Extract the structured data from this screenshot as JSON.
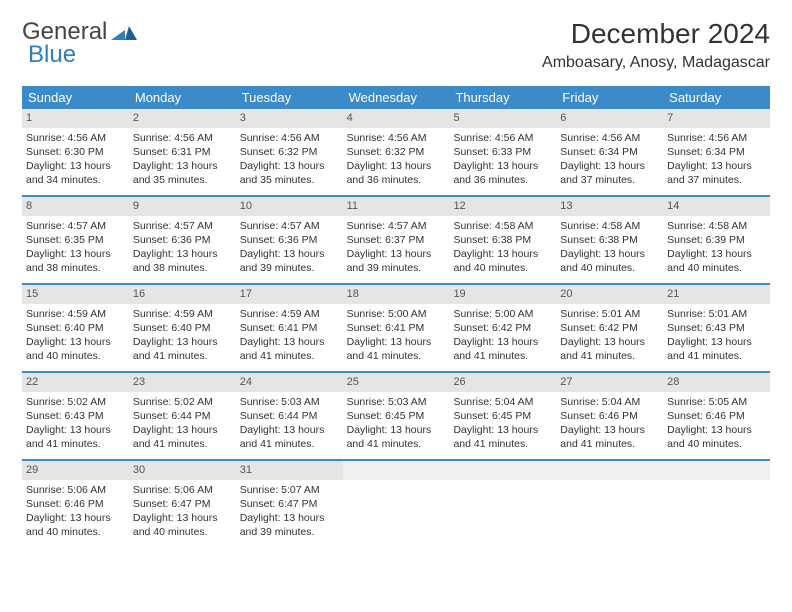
{
  "brand": {
    "part1": "General",
    "part2": "Blue"
  },
  "title": "December 2024",
  "location": "Amboasary, Anosy, Madagascar",
  "colors": {
    "header_blue": "#3b8bc9",
    "daynum_bg": "#e5e5e5",
    "text": "#333333",
    "logo_blue": "#2a7fbf"
  },
  "days_of_week": [
    "Sunday",
    "Monday",
    "Tuesday",
    "Wednesday",
    "Thursday",
    "Friday",
    "Saturday"
  ],
  "weeks": [
    [
      {
        "num": "1",
        "sunrise": "Sunrise: 4:56 AM",
        "sunset": "Sunset: 6:30 PM",
        "day1": "Daylight: 13 hours",
        "day2": "and 34 minutes."
      },
      {
        "num": "2",
        "sunrise": "Sunrise: 4:56 AM",
        "sunset": "Sunset: 6:31 PM",
        "day1": "Daylight: 13 hours",
        "day2": "and 35 minutes."
      },
      {
        "num": "3",
        "sunrise": "Sunrise: 4:56 AM",
        "sunset": "Sunset: 6:32 PM",
        "day1": "Daylight: 13 hours",
        "day2": "and 35 minutes."
      },
      {
        "num": "4",
        "sunrise": "Sunrise: 4:56 AM",
        "sunset": "Sunset: 6:32 PM",
        "day1": "Daylight: 13 hours",
        "day2": "and 36 minutes."
      },
      {
        "num": "5",
        "sunrise": "Sunrise: 4:56 AM",
        "sunset": "Sunset: 6:33 PM",
        "day1": "Daylight: 13 hours",
        "day2": "and 36 minutes."
      },
      {
        "num": "6",
        "sunrise": "Sunrise: 4:56 AM",
        "sunset": "Sunset: 6:34 PM",
        "day1": "Daylight: 13 hours",
        "day2": "and 37 minutes."
      },
      {
        "num": "7",
        "sunrise": "Sunrise: 4:56 AM",
        "sunset": "Sunset: 6:34 PM",
        "day1": "Daylight: 13 hours",
        "day2": "and 37 minutes."
      }
    ],
    [
      {
        "num": "8",
        "sunrise": "Sunrise: 4:57 AM",
        "sunset": "Sunset: 6:35 PM",
        "day1": "Daylight: 13 hours",
        "day2": "and 38 minutes."
      },
      {
        "num": "9",
        "sunrise": "Sunrise: 4:57 AM",
        "sunset": "Sunset: 6:36 PM",
        "day1": "Daylight: 13 hours",
        "day2": "and 38 minutes."
      },
      {
        "num": "10",
        "sunrise": "Sunrise: 4:57 AM",
        "sunset": "Sunset: 6:36 PM",
        "day1": "Daylight: 13 hours",
        "day2": "and 39 minutes."
      },
      {
        "num": "11",
        "sunrise": "Sunrise: 4:57 AM",
        "sunset": "Sunset: 6:37 PM",
        "day1": "Daylight: 13 hours",
        "day2": "and 39 minutes."
      },
      {
        "num": "12",
        "sunrise": "Sunrise: 4:58 AM",
        "sunset": "Sunset: 6:38 PM",
        "day1": "Daylight: 13 hours",
        "day2": "and 40 minutes."
      },
      {
        "num": "13",
        "sunrise": "Sunrise: 4:58 AM",
        "sunset": "Sunset: 6:38 PM",
        "day1": "Daylight: 13 hours",
        "day2": "and 40 minutes."
      },
      {
        "num": "14",
        "sunrise": "Sunrise: 4:58 AM",
        "sunset": "Sunset: 6:39 PM",
        "day1": "Daylight: 13 hours",
        "day2": "and 40 minutes."
      }
    ],
    [
      {
        "num": "15",
        "sunrise": "Sunrise: 4:59 AM",
        "sunset": "Sunset: 6:40 PM",
        "day1": "Daylight: 13 hours",
        "day2": "and 40 minutes."
      },
      {
        "num": "16",
        "sunrise": "Sunrise: 4:59 AM",
        "sunset": "Sunset: 6:40 PM",
        "day1": "Daylight: 13 hours",
        "day2": "and 41 minutes."
      },
      {
        "num": "17",
        "sunrise": "Sunrise: 4:59 AM",
        "sunset": "Sunset: 6:41 PM",
        "day1": "Daylight: 13 hours",
        "day2": "and 41 minutes."
      },
      {
        "num": "18",
        "sunrise": "Sunrise: 5:00 AM",
        "sunset": "Sunset: 6:41 PM",
        "day1": "Daylight: 13 hours",
        "day2": "and 41 minutes."
      },
      {
        "num": "19",
        "sunrise": "Sunrise: 5:00 AM",
        "sunset": "Sunset: 6:42 PM",
        "day1": "Daylight: 13 hours",
        "day2": "and 41 minutes."
      },
      {
        "num": "20",
        "sunrise": "Sunrise: 5:01 AM",
        "sunset": "Sunset: 6:42 PM",
        "day1": "Daylight: 13 hours",
        "day2": "and 41 minutes."
      },
      {
        "num": "21",
        "sunrise": "Sunrise: 5:01 AM",
        "sunset": "Sunset: 6:43 PM",
        "day1": "Daylight: 13 hours",
        "day2": "and 41 minutes."
      }
    ],
    [
      {
        "num": "22",
        "sunrise": "Sunrise: 5:02 AM",
        "sunset": "Sunset: 6:43 PM",
        "day1": "Daylight: 13 hours",
        "day2": "and 41 minutes."
      },
      {
        "num": "23",
        "sunrise": "Sunrise: 5:02 AM",
        "sunset": "Sunset: 6:44 PM",
        "day1": "Daylight: 13 hours",
        "day2": "and 41 minutes."
      },
      {
        "num": "24",
        "sunrise": "Sunrise: 5:03 AM",
        "sunset": "Sunset: 6:44 PM",
        "day1": "Daylight: 13 hours",
        "day2": "and 41 minutes."
      },
      {
        "num": "25",
        "sunrise": "Sunrise: 5:03 AM",
        "sunset": "Sunset: 6:45 PM",
        "day1": "Daylight: 13 hours",
        "day2": "and 41 minutes."
      },
      {
        "num": "26",
        "sunrise": "Sunrise: 5:04 AM",
        "sunset": "Sunset: 6:45 PM",
        "day1": "Daylight: 13 hours",
        "day2": "and 41 minutes."
      },
      {
        "num": "27",
        "sunrise": "Sunrise: 5:04 AM",
        "sunset": "Sunset: 6:46 PM",
        "day1": "Daylight: 13 hours",
        "day2": "and 41 minutes."
      },
      {
        "num": "28",
        "sunrise": "Sunrise: 5:05 AM",
        "sunset": "Sunset: 6:46 PM",
        "day1": "Daylight: 13 hours",
        "day2": "and 40 minutes."
      }
    ],
    [
      {
        "num": "29",
        "sunrise": "Sunrise: 5:06 AM",
        "sunset": "Sunset: 6:46 PM",
        "day1": "Daylight: 13 hours",
        "day2": "and 40 minutes."
      },
      {
        "num": "30",
        "sunrise": "Sunrise: 5:06 AM",
        "sunset": "Sunset: 6:47 PM",
        "day1": "Daylight: 13 hours",
        "day2": "and 40 minutes."
      },
      {
        "num": "31",
        "sunrise": "Sunrise: 5:07 AM",
        "sunset": "Sunset: 6:47 PM",
        "day1": "Daylight: 13 hours",
        "day2": "and 39 minutes."
      },
      {
        "empty": true
      },
      {
        "empty": true
      },
      {
        "empty": true
      },
      {
        "empty": true
      }
    ]
  ]
}
